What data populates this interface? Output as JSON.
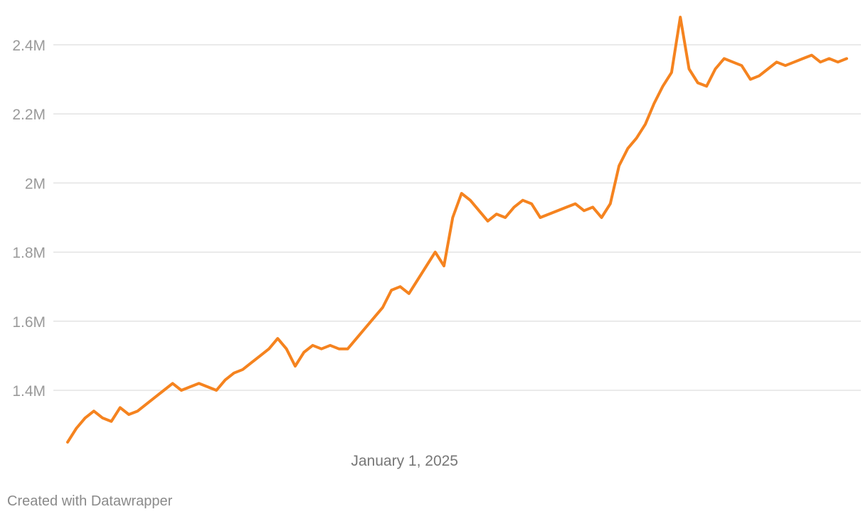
{
  "chart_data": {
    "type": "line",
    "title": "",
    "xlabel": "",
    "ylabel": "",
    "ylim": [
      1150000,
      2500000
    ],
    "y_ticks": [
      {
        "value": 1400000,
        "label": "1.4M"
      },
      {
        "value": 1600000,
        "label": "1.6M"
      },
      {
        "value": 1800000,
        "label": "1.8M"
      },
      {
        "value": 2000000,
        "label": "2M"
      },
      {
        "value": 2200000,
        "label": "2.2M"
      },
      {
        "value": 2400000,
        "label": "2.4M"
      }
    ],
    "x_ticks": [
      {
        "value": 2025.0,
        "label": "January 1, 2025"
      }
    ],
    "grid": true,
    "legend": "none",
    "line_color": "#f5831f",
    "series": [
      {
        "x": [
          2023.46,
          2023.5,
          2023.54,
          2023.58,
          2023.62,
          2023.66,
          2023.7,
          2023.74,
          2023.78,
          2023.82,
          2023.86,
          2023.9,
          2023.94,
          2023.98,
          2024.02,
          2024.06,
          2024.1,
          2024.14,
          2024.18,
          2024.22,
          2024.26,
          2024.3,
          2024.34,
          2024.38,
          2024.42,
          2024.46,
          2024.5,
          2024.54,
          2024.58,
          2024.62,
          2024.66,
          2024.7,
          2024.74,
          2024.78,
          2024.82,
          2024.86,
          2024.9,
          2024.94,
          2024.98,
          2025.02,
          2025.06,
          2025.1,
          2025.14,
          2025.18,
          2025.22,
          2025.26,
          2025.3,
          2025.34,
          2025.38,
          2025.42,
          2025.46,
          2025.5,
          2025.54,
          2025.58,
          2025.62,
          2025.66,
          2025.7,
          2025.74,
          2025.78,
          2025.82,
          2025.86,
          2025.9,
          2025.94,
          2025.98,
          2026.02,
          2026.06,
          2026.1,
          2026.14,
          2026.18,
          2026.22,
          2026.26,
          2026.3,
          2026.34,
          2026.38,
          2026.42,
          2026.46,
          2026.5,
          2026.54,
          2026.58,
          2026.62,
          2026.66,
          2026.7,
          2026.74,
          2026.78,
          2026.82,
          2026.86,
          2026.9,
          2026.94,
          2026.98,
          2027.02
        ],
        "values": [
          1250000,
          1290000,
          1320000,
          1340000,
          1320000,
          1310000,
          1350000,
          1330000,
          1340000,
          1360000,
          1380000,
          1400000,
          1420000,
          1400000,
          1410000,
          1420000,
          1410000,
          1400000,
          1430000,
          1450000,
          1460000,
          1480000,
          1500000,
          1520000,
          1550000,
          1520000,
          1470000,
          1510000,
          1530000,
          1520000,
          1530000,
          1520000,
          1520000,
          1550000,
          1580000,
          1610000,
          1640000,
          1690000,
          1700000,
          1680000,
          1720000,
          1760000,
          1800000,
          1760000,
          1900000,
          1970000,
          1950000,
          1920000,
          1890000,
          1910000,
          1900000,
          1930000,
          1950000,
          1940000,
          1900000,
          1910000,
          1920000,
          1930000,
          1940000,
          1920000,
          1930000,
          1900000,
          1940000,
          2050000,
          2100000,
          2130000,
          2170000,
          2230000,
          2280000,
          2320000,
          2480000,
          2330000,
          2290000,
          2280000,
          2330000,
          2360000,
          2350000,
          2340000,
          2300000,
          2310000,
          2330000,
          2350000,
          2340000,
          2350000,
          2360000,
          2370000,
          2350000,
          2360000,
          2350000,
          2360000
        ]
      }
    ]
  },
  "footer": {
    "credit": "Created with Datawrapper"
  }
}
